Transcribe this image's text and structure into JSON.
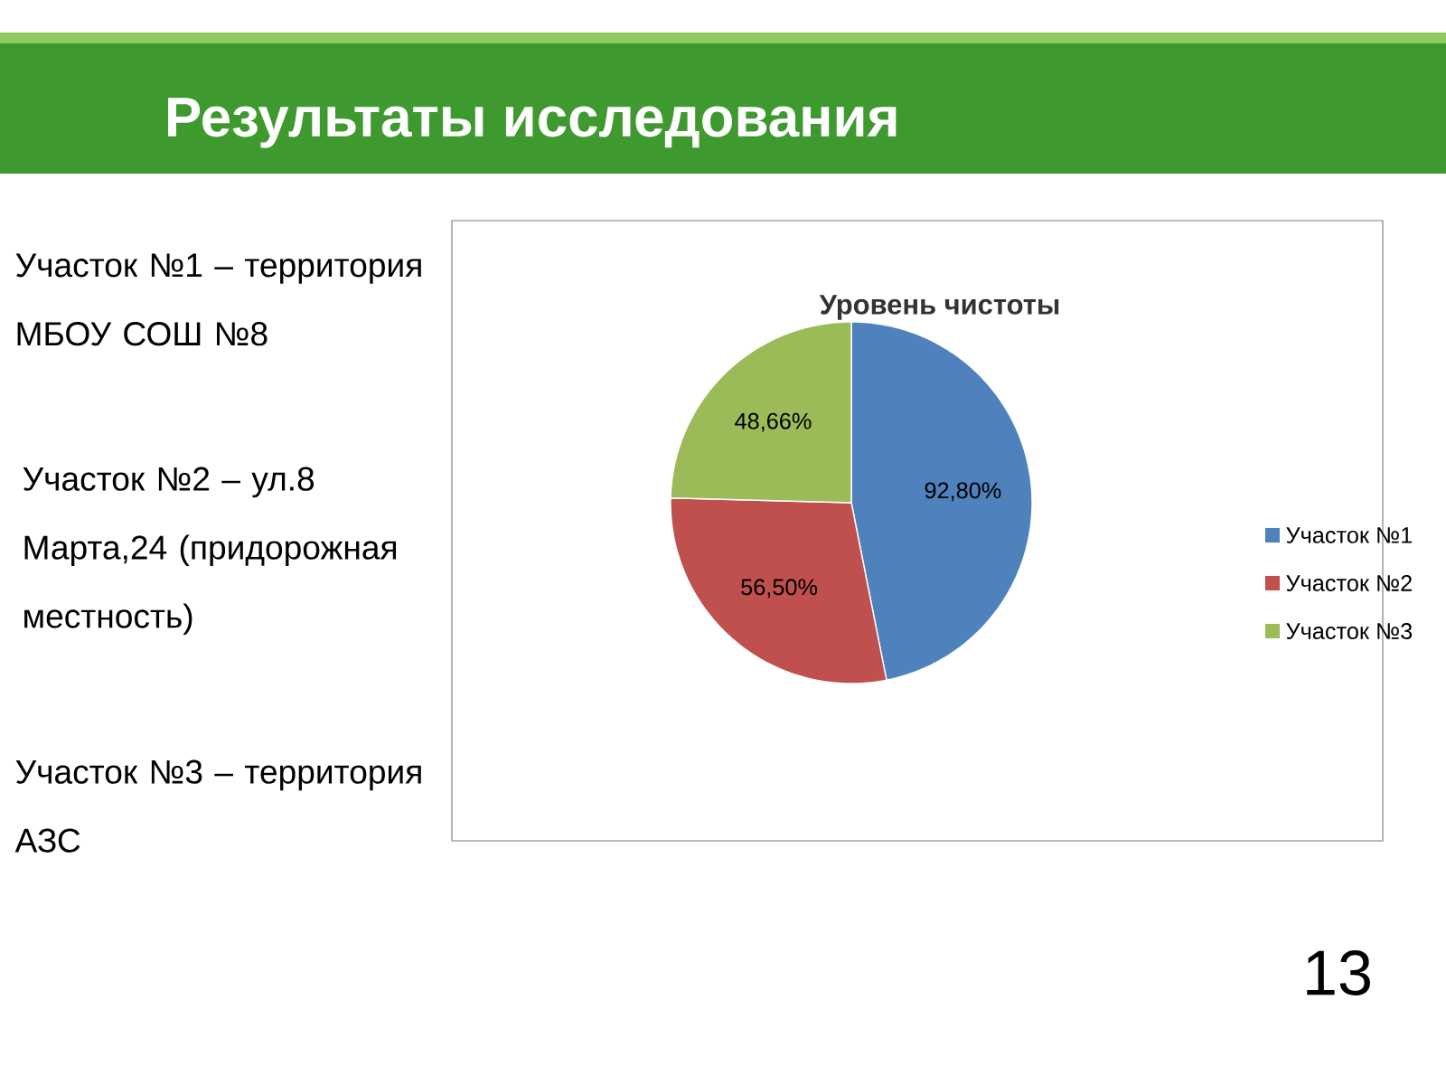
{
  "chart_data": {
    "type": "pie",
    "title": "Уровень чистоты",
    "categories": [
      "Участок №1",
      "Участок №2",
      "Участок №3"
    ],
    "values": [
      92.8,
      56.5,
      48.66
    ],
    "colors": [
      "#4f81bd",
      "#c0504d",
      "#9bbb59"
    ],
    "value_labels": [
      "92,80%",
      "56,50%",
      "48,66%"
    ],
    "legend": "right",
    "annotations": [
      "Результаты исследования",
      "Участок №1 – территория МБОУ СОШ №8",
      "Участок №2 – ул.8 Марта,24 (придорожная местность)",
      "Участок №3 – территория АЗС",
      "13"
    ]
  }
}
